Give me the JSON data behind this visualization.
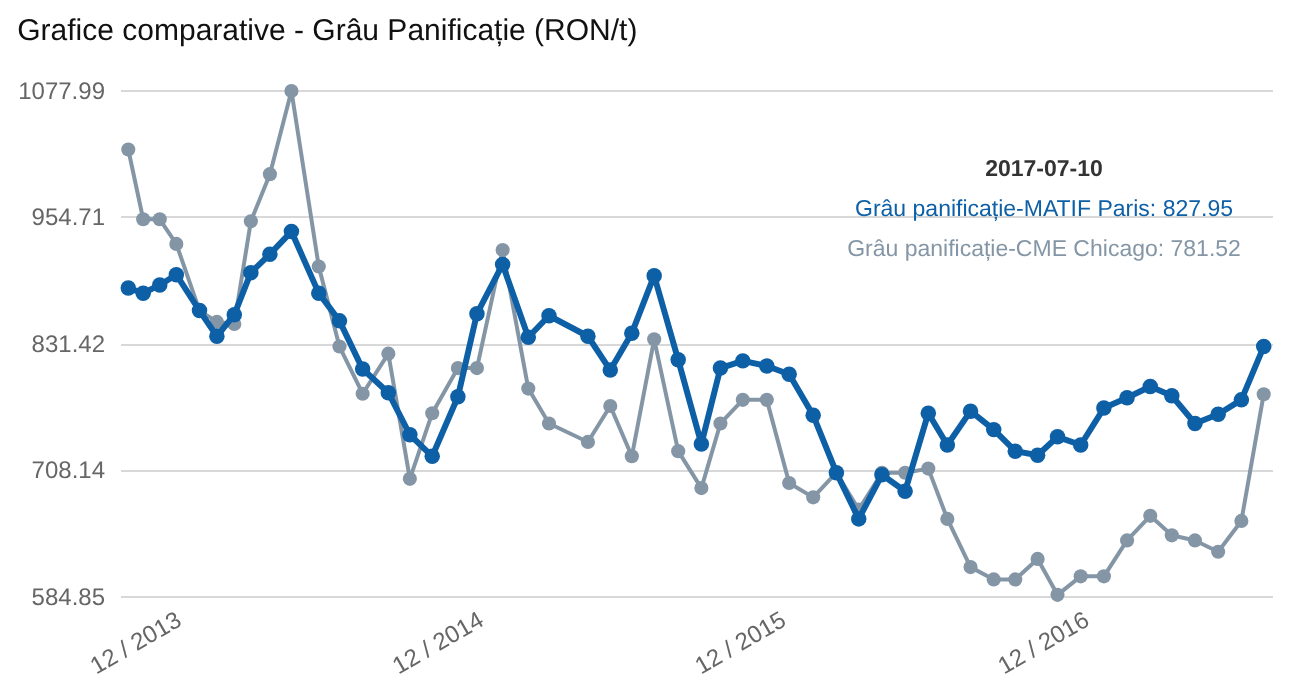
{
  "chart_data": {
    "type": "line",
    "title": "Grafice comparative - Grâu Panificație (RON/t)",
    "x": [
      "2013-10-08",
      "2013-10-26",
      "2013-11-15",
      "2013-12-05",
      "2014-01-02",
      "2014-01-23",
      "2014-02-13",
      "2014-03-05",
      "2014-03-28",
      "2014-04-23",
      "2014-05-26",
      "2014-06-20",
      "2014-07-18",
      "2014-08-18",
      "2014-09-13",
      "2014-10-10",
      "2014-11-10",
      "2014-12-03",
      "2015-01-03",
      "2015-02-03",
      "2015-02-28",
      "2015-04-16",
      "2015-05-13",
      "2015-06-08",
      "2015-07-05",
      "2015-08-03",
      "2015-08-31",
      "2015-09-23",
      "2015-10-20",
      "2015-11-18",
      "2015-12-15",
      "2016-01-13",
      "2016-02-10",
      "2016-03-08",
      "2016-04-05",
      "2016-05-03",
      "2016-05-31",
      "2016-06-23",
      "2016-07-21",
      "2016-08-18",
      "2016-09-13",
      "2016-10-10",
      "2016-11-03",
      "2016-12-01",
      "2016-12-29",
      "2017-01-26",
      "2017-02-23",
      "2017-03-21",
      "2017-04-18",
      "2017-05-16",
      "2017-06-13",
      "2017-07-10"
    ],
    "series": [
      {
        "color": "#0d5fa6",
        "values": [
          885,
          880,
          888,
          898,
          863,
          838,
          859,
          900,
          918,
          940,
          880,
          853,
          806,
          783,
          742,
          721,
          779,
          860,
          908,
          837,
          858,
          838,
          805,
          841,
          897,
          815,
          733,
          807,
          814,
          809,
          801,
          761,
          705,
          660,
          703,
          687,
          763,
          732,
          765,
          747,
          726,
          722,
          740,
          732,
          768,
          778,
          789,
          780,
          753,
          762,
          776,
          827.95
        ]
      },
      {
        "color": "#8496a6",
        "values": [
          1020,
          952,
          952,
          928,
          863,
          852,
          850,
          950,
          996,
          1077,
          906,
          828,
          782,
          821,
          699,
          763,
          807,
          807,
          922,
          787,
          753,
          735,
          770,
          721,
          835,
          726,
          690,
          753,
          776,
          776,
          695,
          681,
          705,
          669,
          705,
          705,
          709,
          660,
          613,
          601,
          601,
          621,
          586,
          604,
          604,
          639,
          663,
          644,
          639,
          628,
          658,
          781.52
        ]
      }
    ],
    "annotations": [
      "2017-07-10",
      "Grâu panificație-MATIF Paris: 827.95",
      "Grâu panificație-CME Chicago: 781.52"
    ],
    "xlim": [
      "2013-09-28",
      "2017-07-20"
    ],
    "xticks": [
      {
        "value": "2013-12-01",
        "label": "12 / 2013"
      },
      {
        "value": "2014-12-01",
        "label": "12 / 2014"
      },
      {
        "value": "2015-12-01",
        "label": "12 / 2015"
      },
      {
        "value": "2016-12-01",
        "label": "12 / 2016"
      }
    ],
    "ylim": [
      584.85,
      1077.99
    ],
    "yticks": [
      584.85,
      708.14,
      831.42,
      954.71,
      1077.99
    ],
    "grid": "y",
    "marker": "circle"
  }
}
